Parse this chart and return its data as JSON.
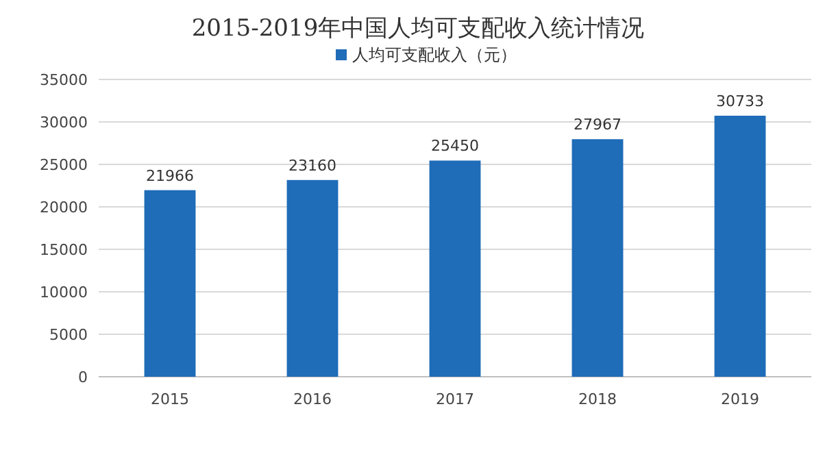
{
  "chart_data": {
    "type": "bar",
    "title": "2015-2019年中国人均可支配收入统计情况",
    "categories": [
      "2015",
      "2016",
      "2017",
      "2018",
      "2019"
    ],
    "series": [
      {
        "name": "人均可支配收入（元）",
        "color": "#1f6cb8",
        "values": [
          21966,
          23160,
          25450,
          27967,
          30733
        ]
      }
    ],
    "ylim": [
      0,
      35000
    ],
    "yticks": [
      0,
      5000,
      10000,
      15000,
      20000,
      25000,
      30000,
      35000
    ],
    "grid": "y",
    "legend": "top",
    "data_labels": true
  }
}
